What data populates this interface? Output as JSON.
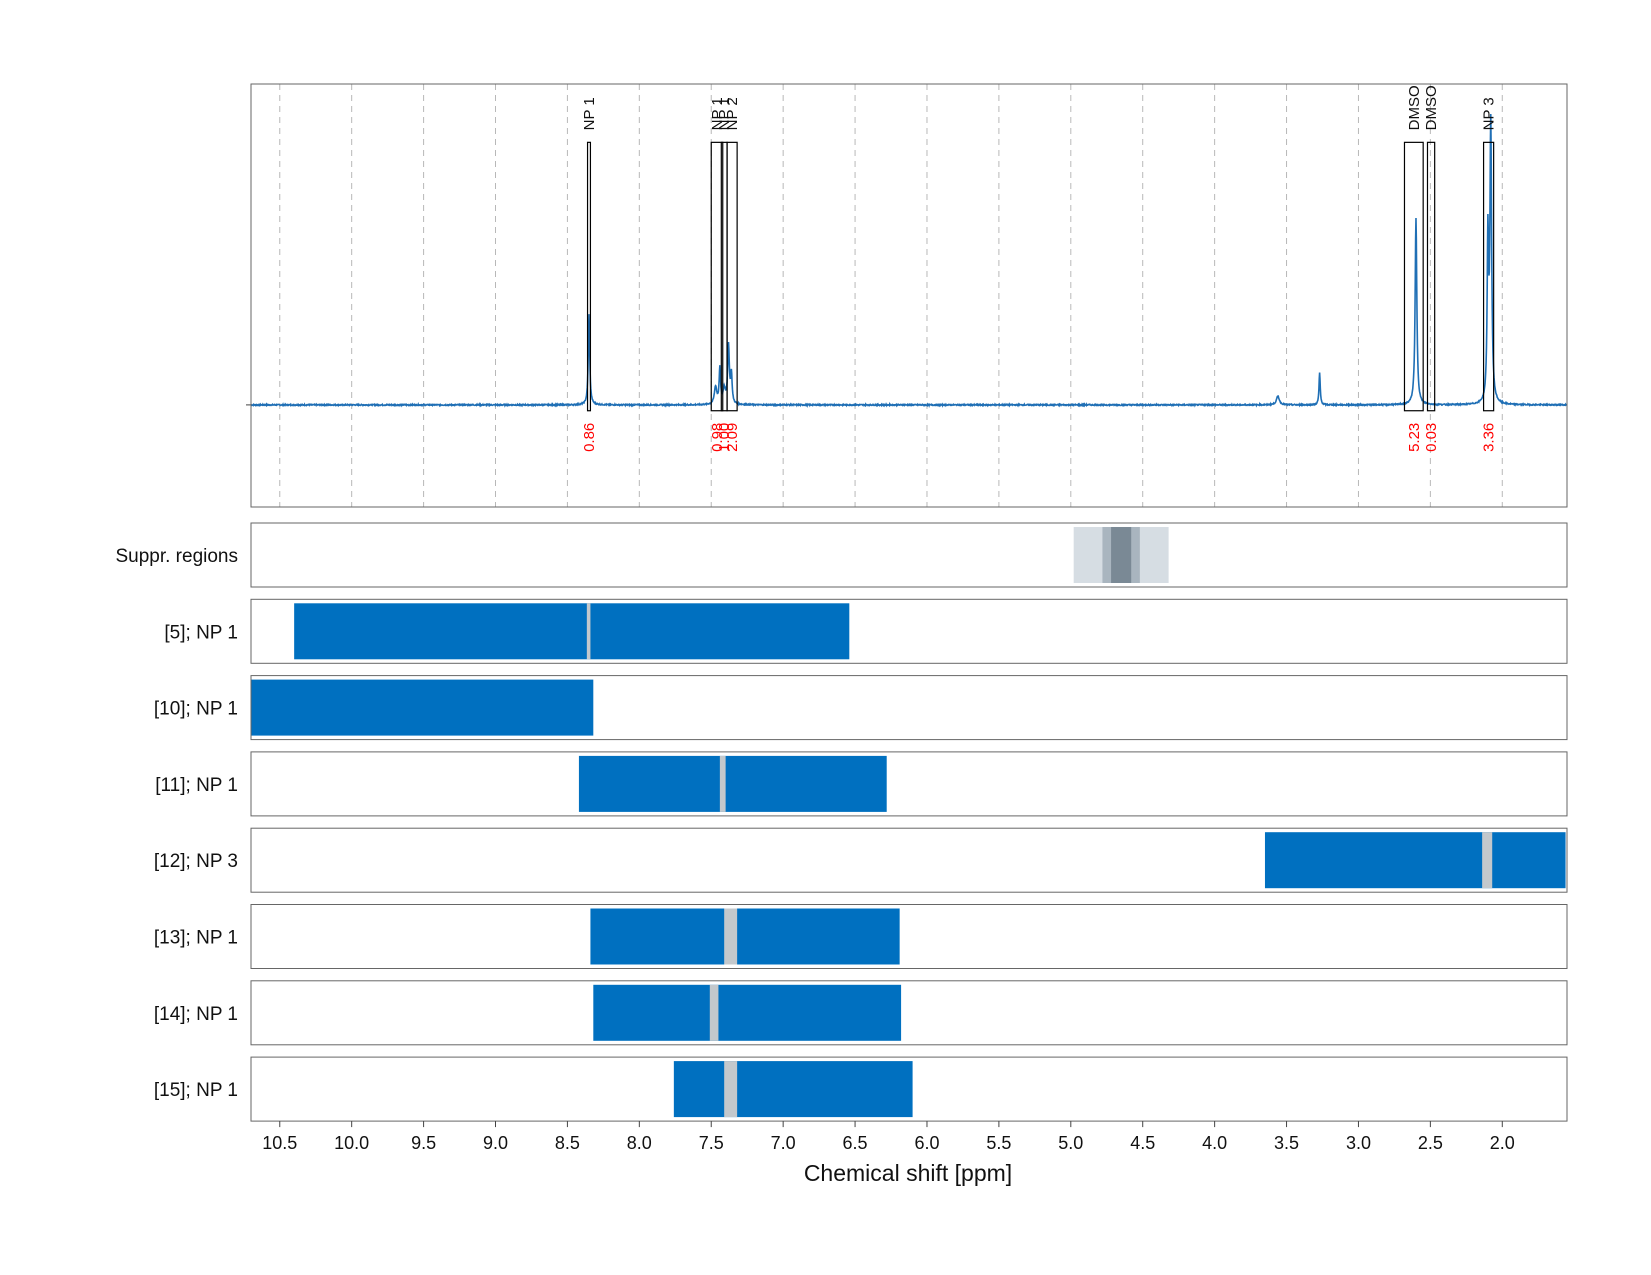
{
  "colors": {
    "spectrum": "#1f6fb5",
    "band": "#0070c0",
    "gap": "#c3c8cc",
    "supp_light": "#d6dde3",
    "supp_mid": "#a9b5bf",
    "supp_dark": "#7a8995",
    "integral": "#ff0000"
  },
  "chart_data": {
    "type": "nmr-spectrum-with-band-tracks",
    "xlabel": "Chemical shift [ppm]",
    "xlim": [
      10.7,
      1.55
    ],
    "xticks": [
      "10.5",
      "10.0",
      "9.5",
      "9.0",
      "8.5",
      "8.0",
      "7.5",
      "7.0",
      "6.5",
      "6.0",
      "5.5",
      "5.0",
      "4.5",
      "4.0",
      "3.5",
      "3.0",
      "2.5",
      "2.0"
    ],
    "spectrum": {
      "baseline": 0,
      "ylim": [
        -0.35,
        1.1
      ],
      "peaks": [
        {
          "ppm": 8.35,
          "height": 0.31,
          "width": 0.006
        },
        {
          "ppm": 7.47,
          "height": 0.06,
          "width": 0.01
        },
        {
          "ppm": 7.44,
          "height": 0.12,
          "width": 0.006
        },
        {
          "ppm": 7.41,
          "height": 0.05,
          "width": 0.01
        },
        {
          "ppm": 7.38,
          "height": 0.2,
          "width": 0.007
        },
        {
          "ppm": 7.36,
          "height": 0.1,
          "width": 0.006
        },
        {
          "ppm": 3.56,
          "height": 0.03,
          "width": 0.012
        },
        {
          "ppm": 3.27,
          "height": 0.11,
          "width": 0.005
        },
        {
          "ppm": 2.6,
          "height": 0.64,
          "width": 0.007
        },
        {
          "ppm": 2.08,
          "height": 0.95,
          "width": 0.007
        },
        {
          "ppm": 2.1,
          "height": 0.55,
          "width": 0.006
        }
      ],
      "annotations": [
        {
          "label": "NP 1",
          "from": 8.36,
          "to": 8.34,
          "integral": "0.86"
        },
        {
          "label": "NP 1",
          "from": 7.5,
          "to": 7.42,
          "integral": "0.98"
        },
        {
          "label": "NP 1",
          "from": 7.43,
          "to": 7.39,
          "integral": "1.00"
        },
        {
          "label": "NP 2",
          "from": 7.39,
          "to": 7.32,
          "integral": "2.09"
        },
        {
          "label": "DMSO",
          "from": 2.68,
          "to": 2.55,
          "integral": "5.23"
        },
        {
          "label": "DMSO",
          "from": 2.52,
          "to": 2.47,
          "integral": "0.03"
        },
        {
          "label": "NP 3",
          "from": 2.13,
          "to": 2.06,
          "integral": "3.36"
        }
      ]
    },
    "tracks": [
      {
        "label": "Suppr. regions",
        "kind": "suppression",
        "segments": [
          {
            "from": 4.98,
            "to": 4.32,
            "level": "light"
          },
          {
            "from": 4.78,
            "to": 4.52,
            "level": "mid"
          },
          {
            "from": 4.72,
            "to": 4.58,
            "level": "dark"
          }
        ]
      },
      {
        "label": "[5]; NP 1",
        "kind": "band",
        "range": [
          10.4,
          6.54
        ],
        "gaps": [
          [
            8.365,
            8.34
          ]
        ]
      },
      {
        "label": "[10]; NP 1",
        "kind": "band",
        "range": [
          10.7,
          8.32
        ],
        "gaps": []
      },
      {
        "label": "[11]; NP 1",
        "kind": "band",
        "range": [
          8.42,
          6.28
        ],
        "gaps": [
          [
            7.44,
            7.4
          ]
        ]
      },
      {
        "label": "[12]; NP 3",
        "kind": "band",
        "range": [
          3.65,
          1.56
        ],
        "gaps": [
          [
            2.14,
            2.07
          ]
        ]
      },
      {
        "label": "[13]; NP 1",
        "kind": "band",
        "range": [
          8.34,
          6.19
        ],
        "gaps": [
          [
            7.41,
            7.32
          ]
        ]
      },
      {
        "label": "[14]; NP 1",
        "kind": "band",
        "range": [
          8.32,
          6.18
        ],
        "gaps": [
          [
            7.51,
            7.45
          ]
        ]
      },
      {
        "label": "[15]; NP 1",
        "kind": "band",
        "range": [
          7.76,
          6.1
        ],
        "gaps": [
          [
            7.41,
            7.32
          ]
        ]
      }
    ]
  }
}
